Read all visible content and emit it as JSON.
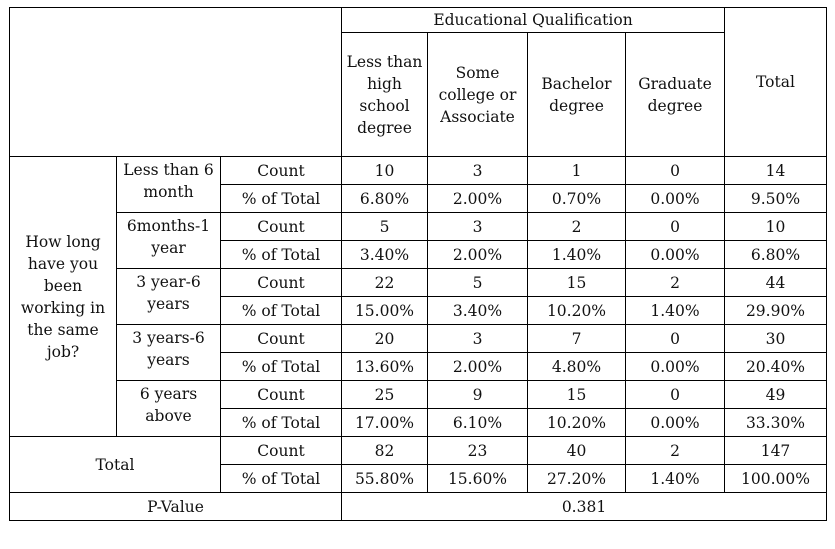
{
  "header": {
    "group_label": "Educational Qualification",
    "columns": [
      "Less than high school degree",
      "Some college or Associate",
      "Bachelor degree",
      "Graduate degree"
    ],
    "total_label": "Total"
  },
  "question": "How long have you been working in the same job?",
  "measures": {
    "count": "Count",
    "percent": "% of Total"
  },
  "groups": [
    {
      "label": "Less than 6 month",
      "count": [
        "10",
        "3",
        "1",
        "0",
        "14"
      ],
      "percent": [
        "6.80%",
        "2.00%",
        "0.70%",
        "0.00%",
        "9.50%"
      ]
    },
    {
      "label": "6months-1 year",
      "count": [
        "5",
        "3",
        "2",
        "0",
        "10"
      ],
      "percent": [
        "3.40%",
        "2.00%",
        "1.40%",
        "0.00%",
        "6.80%"
      ]
    },
    {
      "label": "3 year-6 years",
      "count": [
        "22",
        "5",
        "15",
        "2",
        "44"
      ],
      "percent": [
        "15.00%",
        "3.40%",
        "10.20%",
        "1.40%",
        "29.90%"
      ]
    },
    {
      "label": "3 years-6 years",
      "count": [
        "20",
        "3",
        "7",
        "0",
        "30"
      ],
      "percent": [
        "13.60%",
        "2.00%",
        "4.80%",
        "0.00%",
        "20.40%"
      ]
    },
    {
      "label": "6 years above",
      "count": [
        "25",
        "9",
        "15",
        "0",
        "49"
      ],
      "percent": [
        "17.00%",
        "6.10%",
        "10.20%",
        "0.00%",
        "33.30%"
      ]
    }
  ],
  "total": {
    "label": "Total",
    "count": [
      "82",
      "23",
      "40",
      "2",
      "147"
    ],
    "percent": [
      "55.80%",
      "15.60%",
      "27.20%",
      "1.40%",
      "100.00%"
    ]
  },
  "pvalue": {
    "label": "P-Value",
    "value": "0.381"
  }
}
